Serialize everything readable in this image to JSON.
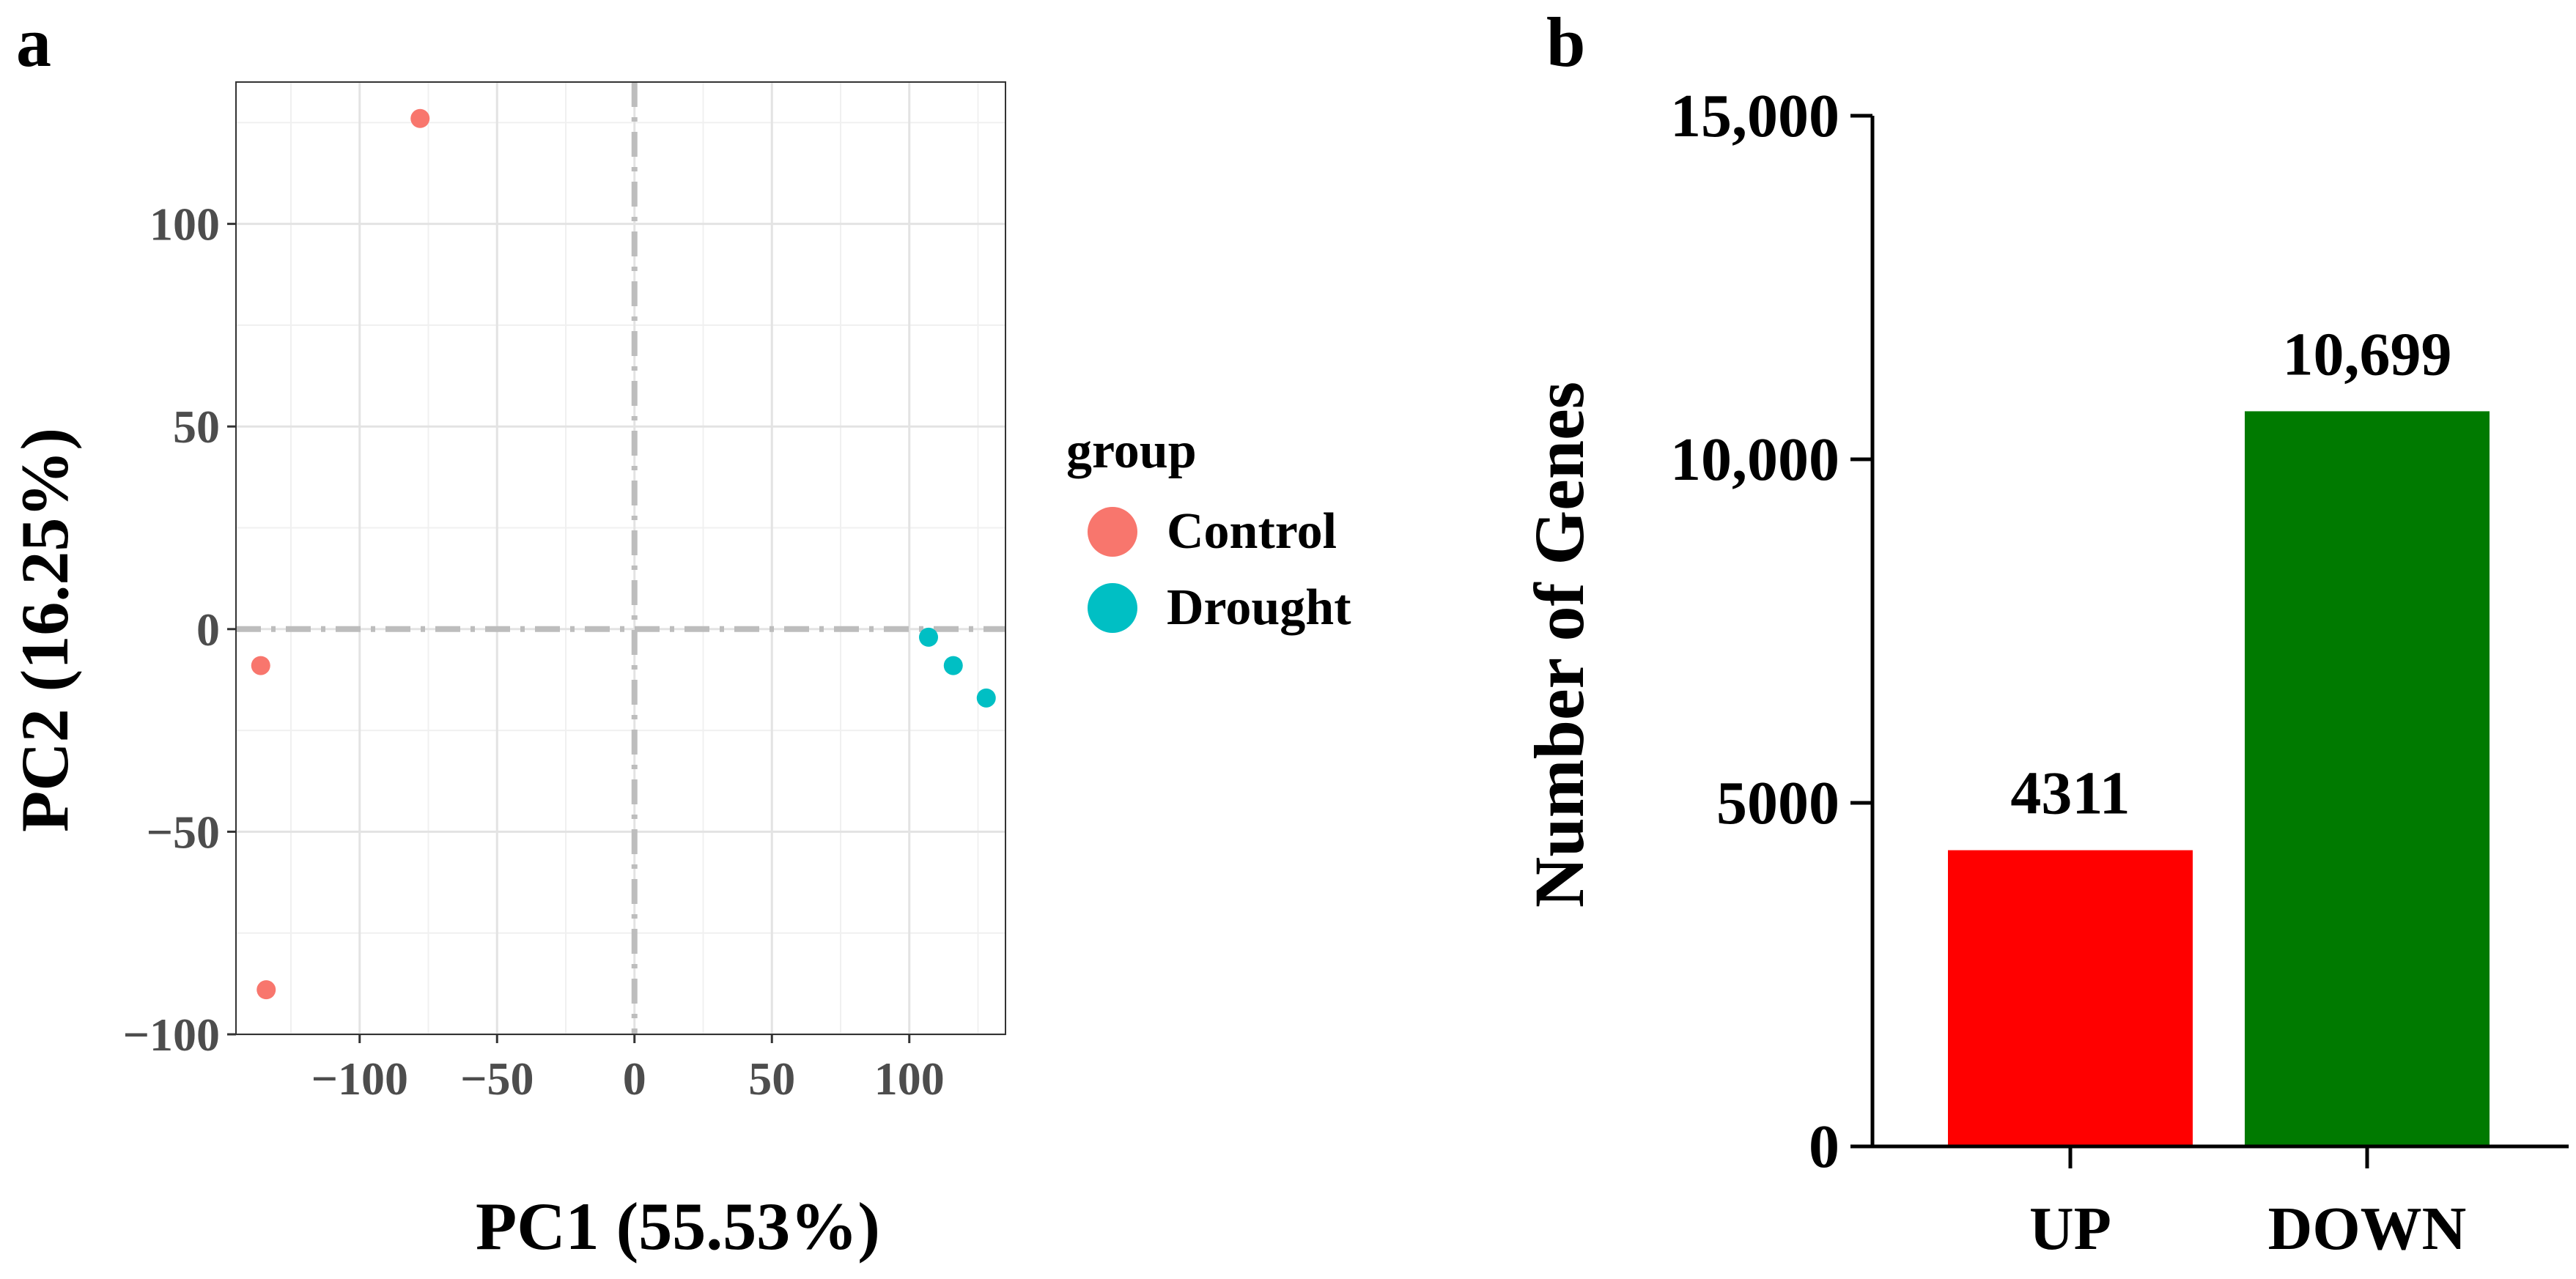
{
  "chart_data": [
    {
      "panel": "a",
      "type": "scatter",
      "xlabel": "PC1 (55.53%)",
      "ylabel": "PC2 (16.25%)",
      "xlim": [
        -145,
        135
      ],
      "ylim": [
        -100,
        135
      ],
      "xticks": [
        -100,
        -50,
        0,
        50,
        100
      ],
      "yticks": [
        -100,
        -50,
        0,
        50,
        100
      ],
      "xtick_labels": [
        "−100",
        "−50",
        "0",
        "50",
        "100"
      ],
      "ytick_labels": [
        "−100",
        "−50",
        "0",
        "50",
        "100"
      ],
      "grid": true,
      "reference_lines": {
        "x": 0,
        "y": 0,
        "style": "dashed"
      },
      "legend": {
        "title": "group",
        "position": "right",
        "entries": [
          {
            "label": "Control",
            "color": "#F8766D"
          },
          {
            "label": "Drought",
            "color": "#00BFC4"
          }
        ]
      },
      "series": [
        {
          "name": "Control",
          "color": "#F8766D",
          "points": [
            [
              -78,
              126
            ],
            [
              -136,
              -9
            ],
            [
              -134,
              -89
            ]
          ]
        },
        {
          "name": "Drought",
          "color": "#00BFC4",
          "points": [
            [
              107,
              -2
            ],
            [
              116,
              -9
            ],
            [
              128,
              -17
            ]
          ]
        }
      ]
    },
    {
      "panel": "b",
      "type": "bar",
      "categories": [
        "UP",
        "DOWN"
      ],
      "values": [
        4311,
        10699
      ],
      "value_labels": [
        "4311",
        "10,699"
      ],
      "colors": [
        "#FF0000",
        "#007A00"
      ],
      "ylabel": "Number of Genes",
      "xlabel": "",
      "ylim": [
        0,
        15000
      ],
      "yticks": [
        0,
        5000,
        10000,
        15000
      ],
      "ytick_labels": [
        "0",
        "5000",
        "10,000",
        "15,000"
      ],
      "grid": false
    }
  ]
}
